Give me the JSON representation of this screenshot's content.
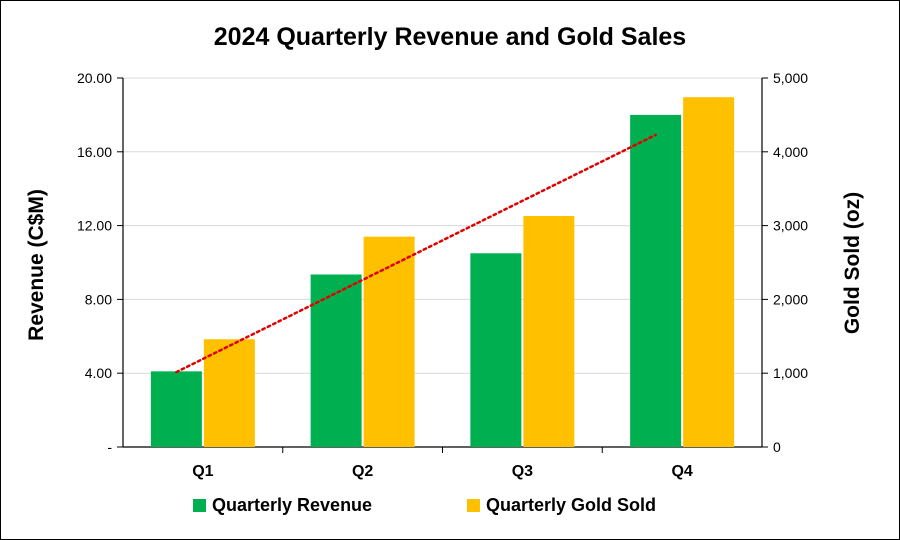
{
  "chart_data": {
    "type": "bar",
    "title": "2024 Quarterly Revenue and Gold Sales",
    "categories": [
      "Q1",
      "Q2",
      "Q3",
      "Q4"
    ],
    "series": [
      {
        "name": "Quarterly Revenue",
        "axis": "left",
        "color": "#00b050",
        "values": [
          4.1,
          9.35,
          10.5,
          18.0
        ]
      },
      {
        "name": "Quarterly Gold Sold",
        "axis": "right",
        "color": "#ffc000",
        "values": [
          1460,
          2850,
          3130,
          4740
        ]
      }
    ],
    "trendline": {
      "series": "Quarterly Revenue",
      "style": "dotted",
      "color": "#e00000",
      "type": "linear"
    },
    "y_left": {
      "label": "Revenue (C$M)",
      "ylim": [
        0,
        20
      ],
      "ticks": [
        "-",
        "4.00",
        "8.00",
        "12.00",
        "16.00",
        "20.00"
      ],
      "tick_values": [
        0,
        4,
        8,
        12,
        16,
        20
      ]
    },
    "y_right": {
      "label": "Gold Sold (oz)",
      "ylim": [
        0,
        5000
      ],
      "ticks": [
        "0",
        "1,000",
        "2,000",
        "3,000",
        "4,000",
        "5,000"
      ],
      "tick_values": [
        0,
        1000,
        2000,
        3000,
        4000,
        5000
      ]
    },
    "grid": true,
    "legend_position": "bottom"
  }
}
